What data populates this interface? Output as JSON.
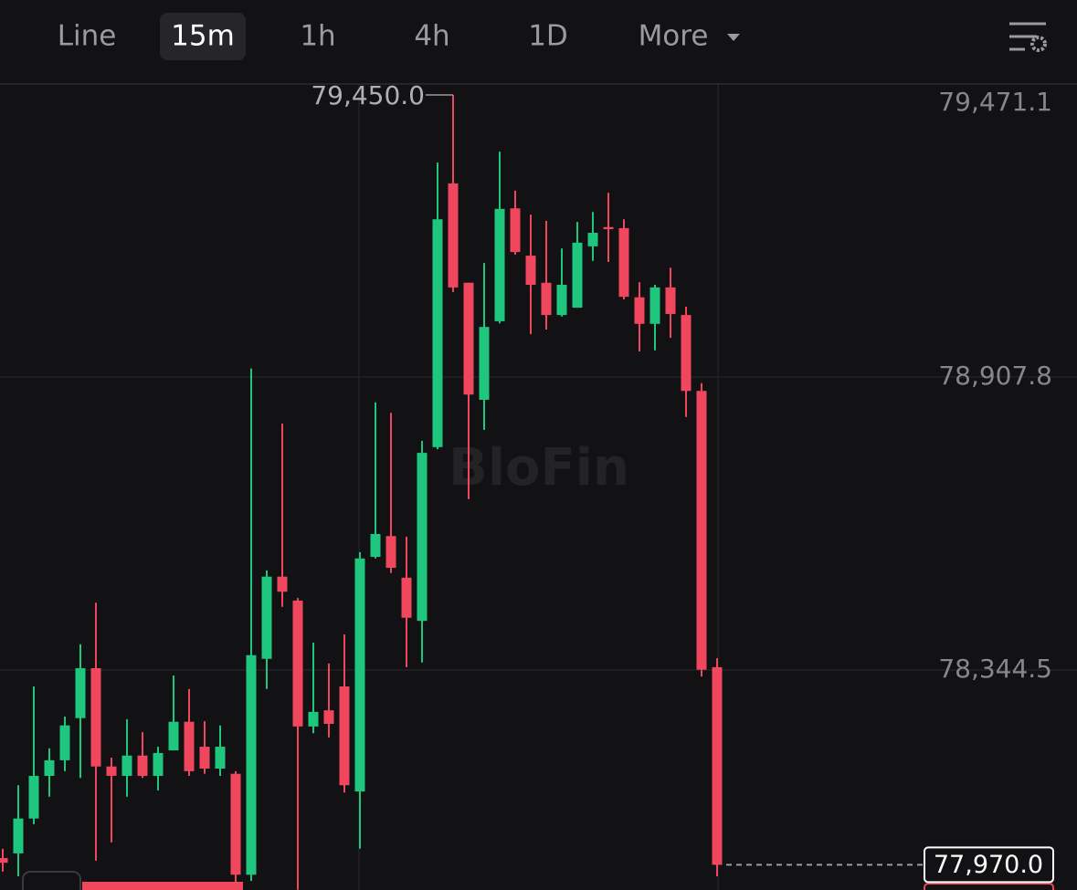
{
  "header": {
    "tabs": [
      "Line",
      "15m",
      "1h",
      "4h",
      "1D",
      "More"
    ],
    "active": 1
  },
  "chart_data": {
    "type": "candlestick",
    "watermark": "BloFin",
    "up_color": "#1fc77e",
    "down_color": "#f0475e",
    "ylim": [
      77921.6,
      79471.1
    ],
    "yticks": [
      {
        "value": 79471.1,
        "label": "79,471.1"
      },
      {
        "value": 78907.8,
        "label": "78,907.8"
      },
      {
        "value": 78344.5,
        "label": "78,344.5"
      }
    ],
    "grid": true,
    "open": [
      77983,
      77992,
      78059,
      78141,
      78171,
      78252,
      78348,
      78159,
      78141,
      78180,
      78141,
      78190,
      78245,
      78197,
      78155,
      78145,
      77951,
      78366,
      78524,
      78478,
      78236,
      78267,
      78313,
      78111,
      78562,
      78602,
      78522,
      78439,
      78773,
      79280,
      79089,
      78864,
      79015,
      79232,
      79141,
      79089,
      79027,
      79041,
      79159,
      79196,
      79194,
      79061,
      79010,
      79080,
      79027,
      78881,
      78350
    ],
    "high": [
      78001,
      78123,
      78313,
      78194,
      78255,
      78394,
      78474,
      78176,
      78250,
      78225,
      78197,
      78334,
      78308,
      78246,
      78238,
      78150,
      78924,
      78536,
      78818,
      78483,
      78397,
      78357,
      78413,
      78571,
      78859,
      78839,
      78601,
      78785,
      79320,
      79450,
      79089,
      79127,
      79341,
      79266,
      79220,
      79208,
      79155,
      79206,
      79225,
      79262,
      79211,
      79090,
      79085,
      79118,
      79043,
      78896,
      78367
    ],
    "low": [
      77957,
      77948,
      78048,
      78101,
      78150,
      78137,
      77978,
      78013,
      78101,
      78137,
      78113,
      78190,
      78141,
      78145,
      78141,
      77922,
      77939,
      78308,
      78466,
      77922,
      78223,
      78215,
      78109,
      78001,
      78559,
      78531,
      78350,
      78359,
      78769,
      79071,
      78673,
      78806,
      79011,
      79143,
      78990,
      78999,
      79024,
      79041,
      79131,
      79129,
      79057,
      78957,
      78959,
      78983,
      78831,
      78332,
      77948
    ],
    "close": [
      77974,
      78059,
      78141,
      78171,
      78238,
      78348,
      78159,
      78141,
      78180,
      78141,
      78185,
      78245,
      78150,
      78155,
      78197,
      77951,
      78373,
      78524,
      78495,
      78236,
      78264,
      78241,
      78123,
      78559,
      78606,
      78541,
      78445,
      78762,
      79211,
      79080,
      78874,
      79004,
      79231,
      79148,
      79085,
      79027,
      79085,
      79166,
      79185,
      79192,
      79062,
      79010,
      79080,
      79029,
      78881,
      78345,
      77970
    ],
    "high_marker": {
      "value": 79450.0,
      "label": "79,450.0"
    },
    "last_price": {
      "value": 77970.0,
      "label": "77,970.0"
    }
  }
}
